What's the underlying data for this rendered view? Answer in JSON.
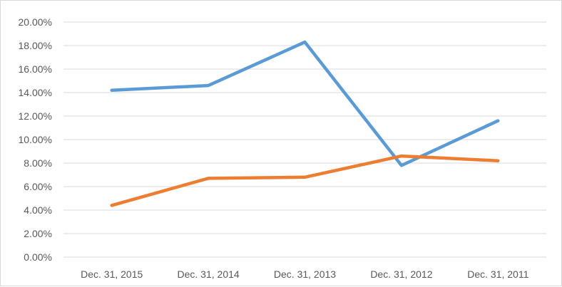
{
  "chart_data": {
    "type": "line",
    "title": "",
    "xlabel": "",
    "ylabel": "",
    "categories": [
      "Dec. 31, 2015",
      "Dec. 31, 2014",
      "Dec. 31, 2013",
      "Dec. 31, 2012",
      "Dec. 31, 2011"
    ],
    "y_ticks": [
      "0.00%",
      "2.00%",
      "4.00%",
      "6.00%",
      "8.00%",
      "10.00%",
      "12.00%",
      "14.00%",
      "16.00%",
      "18.00%",
      "20.00%"
    ],
    "ylim": [
      0,
      20
    ],
    "y_unit": "percent",
    "grid": "horizontal",
    "legend": "none",
    "series": [
      {
        "values": [
          14.2,
          14.6,
          18.3,
          7.8,
          11.6
        ],
        "color": "#5B9BD5"
      },
      {
        "values": [
          4.4,
          6.7,
          6.8,
          8.6,
          8.2
        ],
        "color": "#ED7D31"
      }
    ]
  }
}
